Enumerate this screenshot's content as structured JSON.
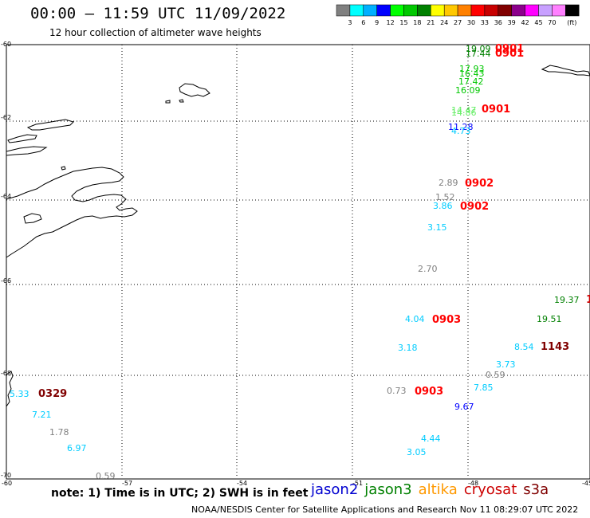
{
  "header": {
    "title": "00:00 – 11:59 UTC 11/09/2022",
    "subtitle": "12 hour collection of altimeter wave heights"
  },
  "colorbar": {
    "unit": "(ft)",
    "colors": [
      "#808080",
      "#00ffff",
      "#00b0ff",
      "#0000ff",
      "#00ff00",
      "#00c800",
      "#008000",
      "#ffff00",
      "#ffc800",
      "#ff8000",
      "#ff0000",
      "#c80000",
      "#800000",
      "#8b008b",
      "#ff00ff",
      "#c8a0ff",
      "#ff80ff",
      "#000000"
    ],
    "labels": [
      "3",
      "6",
      "9",
      "12",
      "15",
      "18",
      "21",
      "24",
      "27",
      "30",
      "33",
      "36",
      "39",
      "42",
      "45",
      "70"
    ]
  },
  "axes": {
    "lat_labels": [
      "-60",
      "-62",
      "-64",
      "-66",
      "-68",
      "-70"
    ],
    "lon_labels": [
      "-60",
      "-57",
      "-54",
      "-51",
      "-48",
      "-45"
    ]
  },
  "footer": {
    "note": "note: 1) Time is in UTC; 2) SWH is in feet",
    "credit": "NOAA/NESDIS Center for Satellite Applications and Research    Nov 11 08:29:07 UTC 2022"
  },
  "legend": [
    {
      "name": "jason2",
      "color": "#0000d0"
    },
    {
      "name": "jason3",
      "color": "#008000"
    },
    {
      "name": "altika",
      "color": "#ff9900"
    },
    {
      "name": "cryosat",
      "color": "#cc0000"
    },
    {
      "name": "s3a",
      "color": "#800000"
    }
  ],
  "observations": [
    {
      "text": "19.09",
      "color": "#008000"
    },
    {
      "text": "0901",
      "color": "#ff0000",
      "bold": true
    },
    {
      "text": "17.44",
      "color": "#008000"
    },
    {
      "text": "0901",
      "color": "#ff0000",
      "bold": true
    },
    {
      "text": "17.93",
      "color": "#00c800"
    },
    {
      "text": "16.43",
      "color": "#00c800"
    },
    {
      "text": "17.42",
      "color": "#00c800"
    },
    {
      "text": "16.09",
      "color": "#00c800"
    },
    {
      "text": "14.47",
      "color": "#66ee66"
    },
    {
      "text": "14.86",
      "color": "#66ee66"
    },
    {
      "text": "0901",
      "color": "#ff0000",
      "bold": true
    },
    {
      "text": "11.28",
      "color": "#0000ff"
    },
    {
      "text": "4.73",
      "color": "#00ccff"
    },
    {
      "text": "2.89",
      "color": "#808080"
    },
    {
      "text": "0902",
      "color": "#ff0000",
      "bold": true
    },
    {
      "text": "1.52",
      "color": "#808080"
    },
    {
      "text": "3.86",
      "color": "#00ccff"
    },
    {
      "text": "0902",
      "color": "#ff0000",
      "bold": true
    },
    {
      "text": "3.15",
      "color": "#00ccff"
    },
    {
      "text": "2.70",
      "color": "#808080"
    },
    {
      "text": "19.37",
      "color": "#008000"
    },
    {
      "text": "1",
      "color": "#cc0000",
      "bold": true
    },
    {
      "text": "4.04",
      "color": "#00ccff"
    },
    {
      "text": "0903",
      "color": "#ff0000",
      "bold": true
    },
    {
      "text": "19.51",
      "color": "#008000"
    },
    {
      "text": "3.18",
      "color": "#00ccff"
    },
    {
      "text": "8.54",
      "color": "#00ccff"
    },
    {
      "text": "1143",
      "color": "#800000",
      "bold": true
    },
    {
      "text": "3.73",
      "color": "#00ccff"
    },
    {
      "text": "0.59",
      "color": "#808080"
    },
    {
      "text": "5.33",
      "color": "#00ccff"
    },
    {
      "text": "0329",
      "color": "#800000",
      "bold": true
    },
    {
      "text": "0.73",
      "color": "#808080"
    },
    {
      "text": "0903",
      "color": "#ff0000",
      "bold": true
    },
    {
      "text": "7.85",
      "color": "#00ccff"
    },
    {
      "text": "7.21",
      "color": "#00ccff"
    },
    {
      "text": "9.67",
      "color": "#0000ff"
    },
    {
      "text": "1.78",
      "color": "#808080"
    },
    {
      "text": "4.44",
      "color": "#00ccff"
    },
    {
      "text": "6.97",
      "color": "#00ccff"
    },
    {
      "text": "3.05",
      "color": "#00ccff"
    },
    {
      "text": "0.59",
      "color": "#808080"
    }
  ]
}
